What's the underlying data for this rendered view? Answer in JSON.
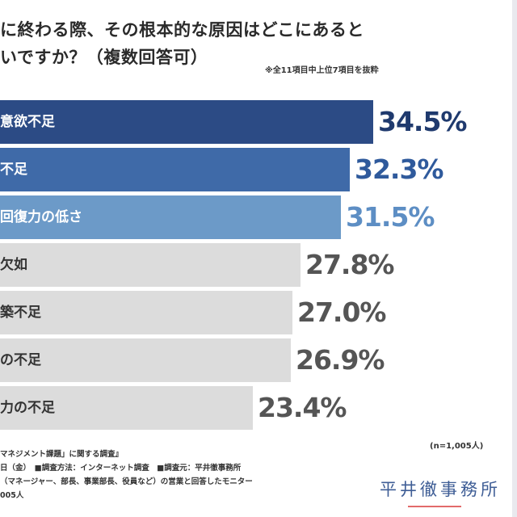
{
  "title_lines": [
    "に終わる際、その根本的な原因はどこにあると",
    "いですか？（複数回答可）"
  ],
  "note": "※全11項目中上位7項目を抜粋",
  "n_label": "(n=1,005人)",
  "footer_lines": [
    "マネジメント課題」に関する調査』",
    "日（金）　■調査方法：インターネット調査　■調査元：平井徹事務所",
    "（マネージャー、部長、事業部長、役員など）の営業と回答したモニター",
    "005人"
  ],
  "logo": "平井徹事務所",
  "colors": {
    "bar1": "#2c4b85",
    "bar2": "#3f6aa8",
    "bar3": "#6c9ac8",
    "bar_gray": "#dcdcdc",
    "value1": "#1f3a6e",
    "value2": "#2f5a9c",
    "value3": "#5d8ec4",
    "value_gray": "#555555"
  },
  "chart_data": {
    "type": "bar",
    "orientation": "horizontal",
    "categories": [
      "意欲不足",
      "不足",
      "回復力の低さ",
      "欠如",
      "築不足",
      "の不足",
      "力の不足"
    ],
    "values": [
      34.5,
      32.3,
      31.5,
      27.8,
      27.0,
      26.9,
      23.4
    ],
    "value_labels": [
      "34.5%",
      "32.3%",
      "31.5%",
      "27.8%",
      "27.0%",
      "26.9%",
      "23.4%"
    ],
    "unit": "%",
    "title": "に終わる際、その根本的な原因はどこにあるといですか？（複数回答可）",
    "xlabel": "",
    "ylabel": ""
  }
}
